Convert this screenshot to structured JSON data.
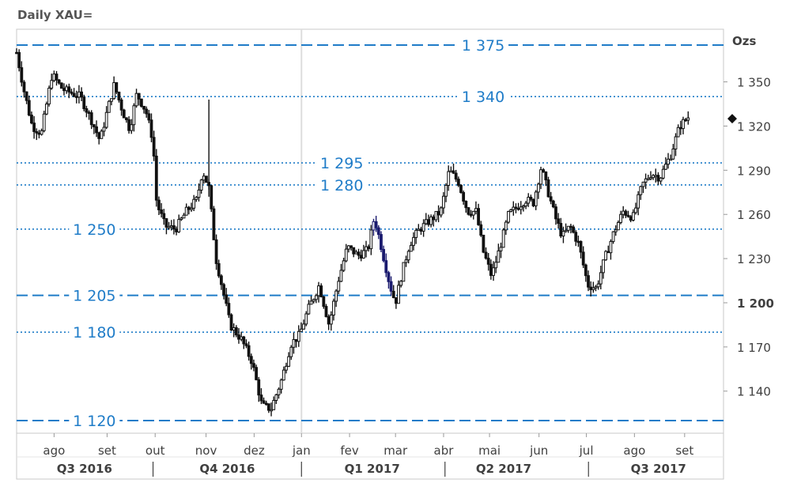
{
  "chart_data": {
    "type": "candlestick",
    "title": "Daily XAU=",
    "unit": "Ozs",
    "ylim": [
      1120,
      1385
    ],
    "yticks": [
      {
        "value": 1140,
        "label": "1 140",
        "bold": false
      },
      {
        "value": 1170,
        "label": "1 170",
        "bold": false
      },
      {
        "value": 1200,
        "label": "1 200",
        "bold": true
      },
      {
        "value": 1230,
        "label": "1 230",
        "bold": false
      },
      {
        "value": 1260,
        "label": "1 260",
        "bold": false
      },
      {
        "value": 1290,
        "label": "1 290",
        "bold": false
      },
      {
        "value": 1320,
        "label": "1 320",
        "bold": false
      },
      {
        "value": 1350,
        "label": "1 350",
        "bold": false
      }
    ],
    "levels": [
      {
        "value": 1375,
        "label": "1 375",
        "style": "dashed",
        "label_x": 0.66
      },
      {
        "value": 1340,
        "label": "1 340",
        "style": "dotted",
        "label_x": 0.66
      },
      {
        "value": 1295,
        "label": "1 295",
        "style": "dotted",
        "label_x": 0.46
      },
      {
        "value": 1280,
        "label": "1 280",
        "style": "dotted",
        "label_x": 0.46
      },
      {
        "value": 1250,
        "label": "1 250",
        "style": "dotted",
        "label_x": 0.11
      },
      {
        "value": 1205,
        "label": "1 205",
        "style": "dashed",
        "label_x": 0.11
      },
      {
        "value": 1180,
        "label": "1 180",
        "style": "dotted",
        "label_x": 0.11
      },
      {
        "value": 1120,
        "label": "1 120",
        "style": "dashed",
        "label_x": 0.11
      }
    ],
    "months": [
      {
        "label": "ago",
        "pos": 0.053
      },
      {
        "label": "set",
        "pos": 0.128
      },
      {
        "label": "out",
        "pos": 0.196
      },
      {
        "label": "nov",
        "pos": 0.268
      },
      {
        "label": "dez",
        "pos": 0.336
      },
      {
        "label": "jan",
        "pos": 0.403
      },
      {
        "label": "fev",
        "pos": 0.471
      },
      {
        "label": "mar",
        "pos": 0.536
      },
      {
        "label": "abr",
        "pos": 0.604
      },
      {
        "label": "mai",
        "pos": 0.669
      },
      {
        "label": "jun",
        "pos": 0.739
      },
      {
        "label": "jul",
        "pos": 0.806
      },
      {
        "label": "ago",
        "pos": 0.874
      },
      {
        "label": "set",
        "pos": 0.945
      }
    ],
    "quarters": [
      {
        "label": "Q3 2016",
        "pos": 0.096
      },
      {
        "label": "Q4 2016",
        "pos": 0.298
      },
      {
        "label": "Q1 2017",
        "pos": 0.503
      },
      {
        "label": "Q2 2017",
        "pos": 0.689
      },
      {
        "label": "Q3 2017",
        "pos": 0.908
      }
    ],
    "quarter_separators": [
      0.193,
      0.403,
      0.606,
      0.809
    ],
    "year_divider": 0.403,
    "last_price": 1325,
    "price_path": [
      [
        0.0,
        1370
      ],
      [
        0.01,
        1345
      ],
      [
        0.022,
        1320
      ],
      [
        0.035,
        1315
      ],
      [
        0.05,
        1355
      ],
      [
        0.065,
        1345
      ],
      [
        0.09,
        1340
      ],
      [
        0.105,
        1325
      ],
      [
        0.118,
        1310
      ],
      [
        0.128,
        1330
      ],
      [
        0.138,
        1348
      ],
      [
        0.15,
        1330
      ],
      [
        0.16,
        1318
      ],
      [
        0.17,
        1342
      ],
      [
        0.183,
        1330
      ],
      [
        0.193,
        1310
      ],
      [
        0.198,
        1268
      ],
      [
        0.21,
        1252
      ],
      [
        0.225,
        1250
      ],
      [
        0.24,
        1262
      ],
      [
        0.255,
        1270
      ],
      [
        0.263,
        1290
      ],
      [
        0.272,
        1278
      ],
      [
        0.282,
        1230
      ],
      [
        0.292,
        1208
      ],
      [
        0.302,
        1185
      ],
      [
        0.318,
        1175
      ],
      [
        0.333,
        1160
      ],
      [
        0.347,
        1130
      ],
      [
        0.36,
        1128
      ],
      [
        0.375,
        1148
      ],
      [
        0.388,
        1172
      ],
      [
        0.4,
        1178
      ],
      [
        0.412,
        1195
      ],
      [
        0.428,
        1212
      ],
      [
        0.442,
        1185
      ],
      [
        0.455,
        1215
      ],
      [
        0.468,
        1238
      ],
      [
        0.483,
        1232
      ],
      [
        0.497,
        1236
      ],
      [
        0.506,
        1258
      ],
      [
        0.515,
        1240
      ],
      [
        0.528,
        1212
      ],
      [
        0.536,
        1200
      ],
      [
        0.545,
        1220
      ],
      [
        0.556,
        1240
      ],
      [
        0.57,
        1250
      ],
      [
        0.585,
        1256
      ],
      [
        0.6,
        1262
      ],
      [
        0.612,
        1290
      ],
      [
        0.625,
        1282
      ],
      [
        0.638,
        1262
      ],
      [
        0.65,
        1262
      ],
      [
        0.66,
        1235
      ],
      [
        0.672,
        1218
      ],
      [
        0.684,
        1238
      ],
      [
        0.696,
        1260
      ],
      [
        0.708,
        1265
      ],
      [
        0.72,
        1270
      ],
      [
        0.731,
        1268
      ],
      [
        0.742,
        1292
      ],
      [
        0.752,
        1275
      ],
      [
        0.762,
        1258
      ],
      [
        0.772,
        1245
      ],
      [
        0.783,
        1252
      ],
      [
        0.795,
        1240
      ],
      [
        0.808,
        1212
      ],
      [
        0.82,
        1210
      ],
      [
        0.832,
        1230
      ],
      [
        0.845,
        1248
      ],
      [
        0.858,
        1262
      ],
      [
        0.872,
        1258
      ],
      [
        0.885,
        1280
      ],
      [
        0.898,
        1288
      ],
      [
        0.91,
        1285
      ],
      [
        0.925,
        1300
      ],
      [
        0.938,
        1320
      ],
      [
        0.95,
        1326
      ]
    ]
  }
}
